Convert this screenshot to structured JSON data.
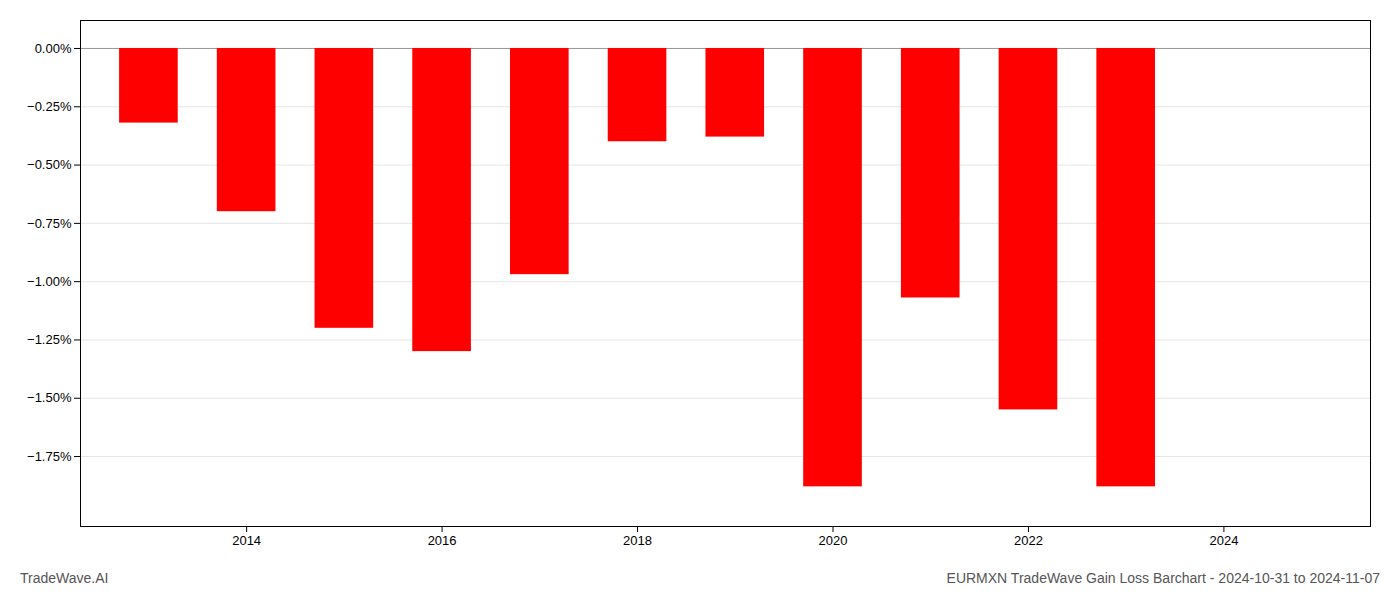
{
  "chart_data": {
    "type": "bar",
    "title": "EURMXN TradeWave Gain Loss Barchart - 2024-10-31 to 2024-11-07",
    "annotations": [
      "TradeWave.AI"
    ],
    "x": [
      2013,
      2014,
      2015,
      2016,
      2017,
      2018,
      2019,
      2020,
      2021,
      2022,
      2023
    ],
    "values": [
      -0.32,
      -0.7,
      -1.2,
      -1.3,
      -0.97,
      -0.4,
      -0.38,
      -1.88,
      -1.07,
      -1.55,
      -1.88
    ],
    "color": "#ff0000",
    "xlim": [
      2012.3,
      2025.5
    ],
    "xticks": [
      2014,
      2016,
      2018,
      2020,
      2022,
      2024
    ],
    "ylim": [
      -2.05,
      0.12
    ],
    "yticks": [
      {
        "value": 0.0,
        "label": "0.00%"
      },
      {
        "value": -0.25,
        "label": "−0.25%"
      },
      {
        "value": -0.5,
        "label": "−0.50%"
      },
      {
        "value": -0.75,
        "label": "−0.75%"
      },
      {
        "value": -1.0,
        "label": "−1.00%"
      },
      {
        "value": -1.25,
        "label": "−1.25%"
      },
      {
        "value": -1.5,
        "label": "−1.50%"
      },
      {
        "value": -1.75,
        "label": "−1.75%"
      }
    ],
    "grid": true
  }
}
